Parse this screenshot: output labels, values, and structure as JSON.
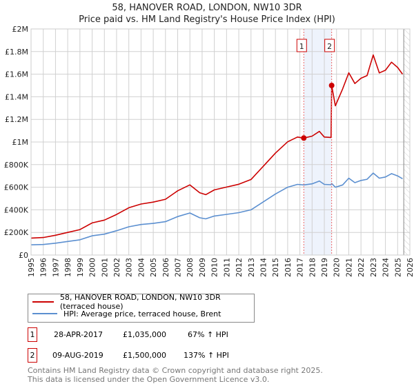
{
  "title_line1": "58, HANOVER ROAD, LONDON, NW10 3DR",
  "title_line2": "Price paid vs. HM Land Registry's House Price Index (HPI)",
  "chart_data": {
    "type": "line",
    "title": "58, HANOVER ROAD, LONDON, NW10 3DR — Price paid vs. HM Land Registry's House Price Index (HPI)",
    "xlim": [
      1995,
      2026
    ],
    "ylim": [
      0,
      2000000
    ],
    "x_ticks": [
      "1995",
      "1996",
      "1997",
      "1998",
      "1999",
      "2000",
      "2001",
      "2002",
      "2003",
      "2004",
      "2005",
      "2006",
      "2007",
      "2008",
      "2009",
      "2010",
      "2011",
      "2012",
      "2013",
      "2014",
      "2015",
      "2016",
      "2017",
      "2018",
      "2019",
      "2020",
      "2021",
      "2022",
      "2023",
      "2024",
      "2025",
      "2026"
    ],
    "y_ticks": [
      {
        "v": 0,
        "label": "£0"
      },
      {
        "v": 200000,
        "label": "£200K"
      },
      {
        "v": 400000,
        "label": "£400K"
      },
      {
        "v": 600000,
        "label": "£600K"
      },
      {
        "v": 800000,
        "label": "£800K"
      },
      {
        "v": 1000000,
        "label": "£1M"
      },
      {
        "v": 1200000,
        "label": "£1.2M"
      },
      {
        "v": 1400000,
        "label": "£1.4M"
      },
      {
        "v": 1600000,
        "label": "£1.6M"
      },
      {
        "v": 1800000,
        "label": "£1.8M"
      },
      {
        "v": 2000000,
        "label": "£2M"
      }
    ],
    "grid": true,
    "x": [
      1995,
      1996,
      1997,
      1998,
      1999,
      2000,
      2001,
      2002,
      2003,
      2004,
      2005,
      2006,
      2007,
      2008,
      2008.8,
      2009.3,
      2010,
      2011,
      2012,
      2013,
      2014,
      2015,
      2016,
      2016.8,
      2017.32,
      2018,
      2018.6,
      2019,
      2019.55,
      2019.6,
      2019.9,
      2020.5,
      2021,
      2021.5,
      2022,
      2022.5,
      2023,
      2023.5,
      2024,
      2024.5,
      2025,
      2025.4
    ],
    "series": [
      {
        "name": "58, HANOVER ROAD, LONDON, NW10 3DR (terraced house)",
        "color": "#cc0000",
        "values": [
          150000,
          155000,
          175000,
          200000,
          225000,
          284000,
          309000,
          359000,
          418000,
          451000,
          468000,
          493000,
          568000,
          621000,
          551000,
          534000,
          576000,
          601000,
          626000,
          668000,
          785000,
          902000,
          1002000,
          1044000,
          1035000,
          1052000,
          1094000,
          1044000,
          1040000,
          1500000,
          1320000,
          1470000,
          1612000,
          1517000,
          1564000,
          1588000,
          1770000,
          1611000,
          1635000,
          1706000,
          1659000,
          1600000
        ]
      },
      {
        "name": "HPI: Average price, terraced house, Brent",
        "color": "#5b8fd0",
        "values": [
          90000,
          93000,
          105000,
          120000,
          135000,
          170000,
          185000,
          215000,
          250000,
          270000,
          280000,
          295000,
          340000,
          372000,
          330000,
          320000,
          345000,
          360000,
          375000,
          400000,
          470000,
          540000,
          600000,
          625000,
          620000,
          630000,
          655000,
          625000,
          622000,
          633000,
          600000,
          620000,
          680000,
          640000,
          660000,
          670000,
          725000,
          680000,
          690000,
          720000,
          700000,
          675000
        ]
      }
    ],
    "sales": [
      {
        "id": "1",
        "x": 2017.32,
        "value": 1035000
      },
      {
        "id": "2",
        "x": 2019.6,
        "value": 1500000
      }
    ],
    "shaded_range": [
      2017.32,
      2019.6
    ],
    "hatched_from": 2025.5,
    "legend": "below"
  },
  "legend": {
    "property": "58, HANOVER ROAD, LONDON, NW10 3DR (terraced house)",
    "hpi": "HPI: Average price, terraced house, Brent"
  },
  "transactions": [
    {
      "id": "1",
      "date": "28-APR-2017",
      "price": "£1,035,000",
      "hpi": "67% ↑ HPI"
    },
    {
      "id": "2",
      "date": "09-AUG-2019",
      "price": "£1,500,000",
      "hpi": "137% ↑ HPI"
    }
  ],
  "footer_line1": "Contains HM Land Registry data © Crown copyright and database right 2025.",
  "footer_line2": "This data is licensed under the Open Government Licence v3.0."
}
